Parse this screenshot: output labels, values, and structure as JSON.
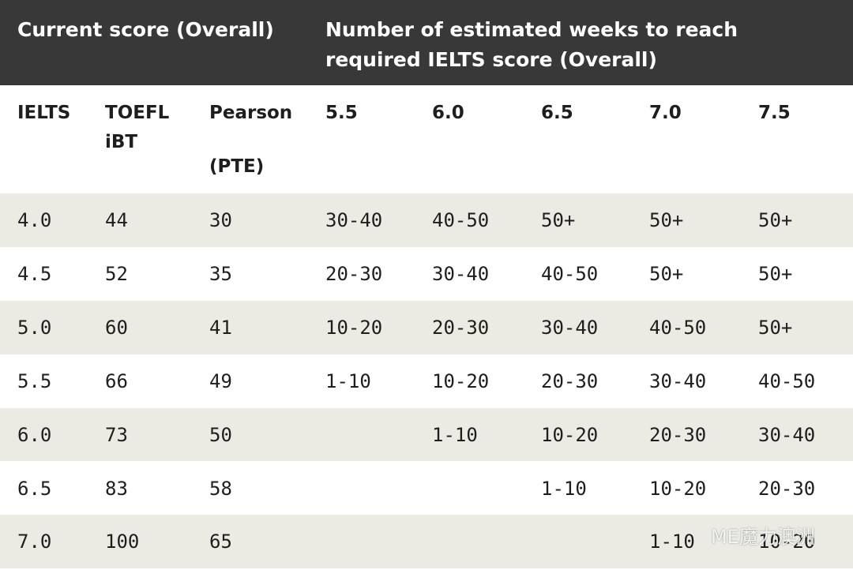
{
  "header": {
    "groups": [
      "Current score (Overall)",
      "Number of estimated weeks to reach required IELTS score (Overall)"
    ]
  },
  "table": {
    "columns": [
      [
        "IELTS"
      ],
      [
        "TOEFL",
        "iBT"
      ],
      [
        "Pearson",
        "(PTE)"
      ],
      [
        "5.5"
      ],
      [
        "6.0"
      ],
      [
        "6.5"
      ],
      [
        "7.0"
      ],
      [
        "7.5"
      ]
    ],
    "rows": [
      [
        "4.0",
        "44",
        "30",
        "30-40",
        "40-50",
        "50+",
        "50+",
        "50+"
      ],
      [
        "4.5",
        "52",
        "35",
        "20-30",
        "30-40",
        "40-50",
        "50+",
        "50+"
      ],
      [
        "5.0",
        "60",
        "41",
        "10-20",
        "20-30",
        "30-40",
        "40-50",
        "50+"
      ],
      [
        "5.5",
        "66",
        "49",
        "1-10",
        "10-20",
        "20-30",
        "30-40",
        "40-50"
      ],
      [
        "6.0",
        "73",
        "50",
        null,
        "1-10",
        "10-20",
        "20-30",
        "30-40"
      ],
      [
        "6.5",
        "83",
        "58",
        null,
        null,
        "1-10",
        "10-20",
        "20-30"
      ],
      [
        "7.0",
        "100",
        "65",
        null,
        null,
        null,
        "1-10",
        "10-20"
      ]
    ]
  },
  "watermark": "ME魔力澳洲"
}
